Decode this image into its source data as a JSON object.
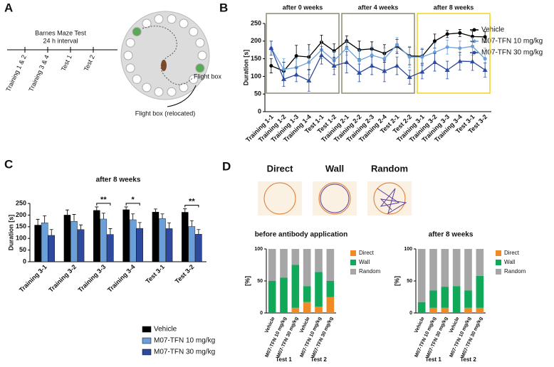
{
  "figure": {
    "panels": [
      "A",
      "B",
      "C",
      "D"
    ],
    "maze": {
      "title": "Barnes Maze Test",
      "subtitle": "24 h interval",
      "steps": [
        "Training 1 & 2",
        "Training 3 & 4",
        "Test 1",
        "Test 2"
      ],
      "flight_box": "Flight box",
      "relocated": "Flight box (relocated)"
    },
    "strategies": [
      "Direct",
      "Wall",
      "Random"
    ]
  },
  "chart_data": [
    {
      "type": "line",
      "ylabel": "Duration [s]",
      "categories": [
        "Training 1-1",
        "Training 1-2",
        "Training 1-3",
        "Training 1-4",
        "Test 1-1",
        "Test 1-2",
        "Training 2-1",
        "Training 2-2",
        "Training 2-3",
        "Training 2-4",
        "Test 2-1",
        "Test 2-2",
        "Training 3-1",
        "Training 3-2",
        "Training 3-3",
        "Training 3-4",
        "Test 3-1",
        "Test 3-2"
      ],
      "annotations": [
        "after 0 weeks",
        "after 4 weeks",
        "after 8 weeks"
      ],
      "annotation_colors": [
        "#8c8c70",
        "#8c8c70",
        "#f2d21b"
      ],
      "ylim": [
        0,
        250
      ],
      "yticks": [
        0,
        50,
        100,
        150,
        200,
        250
      ],
      "series": [
        {
          "name": "Vehicle",
          "color": "#000000",
          "marker": "circle",
          "values": [
            130,
            115,
            158,
            155,
            197,
            172,
            200,
            175,
            178,
            165,
            185,
            158,
            157,
            200,
            220,
            223,
            213,
            212
          ],
          "errors": [
            20,
            25,
            30,
            35,
            20,
            20,
            15,
            25,
            20,
            25,
            20,
            25,
            20,
            20,
            10,
            10,
            15,
            15
          ]
        },
        {
          "name": "M07-TFN 10 mg/kg",
          "color": "#6a9fd8",
          "marker": "circle",
          "values": [
            180,
            120,
            125,
            140,
            175,
            145,
            180,
            145,
            160,
            150,
            190,
            155,
            155,
            168,
            183,
            180,
            185,
            150
          ],
          "errors": [
            20,
            30,
            25,
            35,
            25,
            25,
            20,
            30,
            25,
            30,
            20,
            30,
            25,
            25,
            20,
            20,
            25,
            30
          ]
        },
        {
          "name": "M07-TFN 30 mg/kg",
          "color": "#2e4a9e",
          "marker": "triangle",
          "values": [
            180,
            92,
            105,
            88,
            160,
            130,
            140,
            110,
            130,
            115,
            130,
            98,
            113,
            140,
            118,
            143,
            142,
            118
          ],
          "errors": [
            20,
            20,
            20,
            30,
            25,
            25,
            30,
            25,
            25,
            30,
            25,
            20,
            20,
            25,
            25,
            25,
            25,
            20
          ]
        }
      ]
    },
    {
      "type": "bar",
      "title": "after 8 weeks",
      "ylabel": "Duration [s]",
      "categories": [
        "Training 3-1",
        "Training 3-2",
        "Training 3-3",
        "Training 3-4",
        "Test 3-1",
        "Test 3-2"
      ],
      "ylim": [
        0,
        250
      ],
      "yticks": [
        0,
        50,
        100,
        150,
        200,
        250
      ],
      "annotations": [
        {
          "text": "**",
          "category": "Training 3-3"
        },
        {
          "text": "*",
          "category": "Training 3-4"
        },
        {
          "text": "**",
          "category": "Test 3-2"
        }
      ],
      "series": [
        {
          "name": "Vehicle",
          "color": "#000000",
          "values": [
            157,
            200,
            220,
            223,
            213,
            212
          ],
          "errors": [
            25,
            22,
            15,
            12,
            13,
            15
          ]
        },
        {
          "name": "M07-TFN 10 mg/kg",
          "color": "#6a9fd8",
          "values": [
            167,
            173,
            183,
            180,
            185,
            151
          ],
          "errors": [
            30,
            30,
            25,
            25,
            20,
            25
          ]
        },
        {
          "name": "M07-TFN 30 mg/kg",
          "color": "#2e4a9e",
          "values": [
            113,
            138,
            117,
            143,
            142,
            118
          ],
          "errors": [
            25,
            20,
            25,
            25,
            25,
            20
          ]
        }
      ]
    },
    {
      "type": "stacked",
      "title": "before antibody application",
      "ylabel": "[%]",
      "categories": [
        "Vehicle",
        "M07-TFN 10 mg/kg",
        "M07-TFN 30 mg/kg",
        "Vehicle",
        "M07-TFN 10 mg/kg",
        "M07-TFN 30 mg/kg"
      ],
      "groups": [
        "Test 1",
        "Test 2"
      ],
      "ylim": [
        0,
        100
      ],
      "yticks": [
        0,
        50,
        100
      ],
      "series": [
        {
          "name": "Direct",
          "color": "#f08a24",
          "values": [
            0,
            0,
            8,
            17,
            10,
            25
          ]
        },
        {
          "name": "Wall",
          "color": "#11a85a",
          "values": [
            50,
            55,
            67,
            25,
            54,
            25
          ]
        },
        {
          "name": "Random",
          "color": "#a6a6a6",
          "values": [
            50,
            45,
            25,
            58,
            36,
            50
          ]
        }
      ]
    },
    {
      "type": "stacked",
      "title": "after 8 weeks",
      "ylabel": "[%]",
      "categories": [
        "Vehicle",
        "M07-TFN 10 mg/kg",
        "M07-TFN 30 mg/kg",
        "Vehicle",
        "M07-TFN 10 mg/kg",
        "M07-TFN 30 mg/kg"
      ],
      "groups": [
        "Test 1",
        "Test 2"
      ],
      "ylim": [
        0,
        100
      ],
      "yticks": [
        0,
        50,
        100
      ],
      "series": [
        {
          "name": "Direct",
          "color": "#f08a24",
          "values": [
            0,
            8,
            8,
            0,
            8,
            8
          ]
        },
        {
          "name": "Wall",
          "color": "#11a85a",
          "values": [
            17,
            27,
            33,
            42,
            27,
            50
          ]
        },
        {
          "name": "Random",
          "color": "#a6a6a6",
          "values": [
            83,
            65,
            59,
            58,
            65,
            42
          ]
        }
      ]
    }
  ]
}
